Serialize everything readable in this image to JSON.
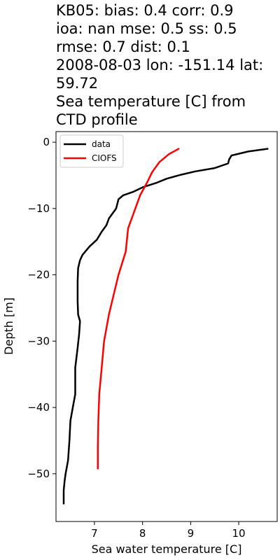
{
  "chart_data": {
    "type": "line",
    "title_lines": [
      "KB05: bias: 0.4  corr: 0.9",
      "ioa: nan  mse: 0.5  ss: 0.5",
      "rmse: 0.7  dist: 0.1",
      "2008-08-03 lon: -151.14 lat:",
      "59.72",
      "Sea temperature [C] from",
      "CTD profile"
    ],
    "xlabel": "Sea water temperature [C]",
    "ylabel": "Depth [m]",
    "xlim": [
      6.2,
      10.8
    ],
    "ylim": [
      -57.2,
      1.6
    ],
    "xticks": [
      7,
      8,
      9,
      10
    ],
    "xtick_labels": [
      "7",
      "8",
      "9",
      "10"
    ],
    "yticks": [
      0,
      -10,
      -20,
      -30,
      -40,
      -50
    ],
    "ytick_labels": [
      "0",
      "−10",
      "−20",
      "−30",
      "−40",
      "−50"
    ],
    "grid": false,
    "legend_position": "top-left",
    "series": [
      {
        "name": "data",
        "color": "#000000",
        "points": [
          [
            10.6,
            -1.0
          ],
          [
            10.2,
            -1.4
          ],
          [
            9.85,
            -2.0
          ],
          [
            9.8,
            -2.6
          ],
          [
            9.78,
            -3.2
          ],
          [
            9.5,
            -3.9
          ],
          [
            9.1,
            -4.4
          ],
          [
            8.8,
            -4.9
          ],
          [
            8.5,
            -5.5
          ],
          [
            8.3,
            -6.1
          ],
          [
            8.0,
            -6.8
          ],
          [
            7.8,
            -7.5
          ],
          [
            7.6,
            -8.0
          ],
          [
            7.5,
            -8.6
          ],
          [
            7.45,
            -10.0
          ],
          [
            7.3,
            -11.5
          ],
          [
            7.25,
            -12.5
          ],
          [
            7.15,
            -13.5
          ],
          [
            7.05,
            -14.7
          ],
          [
            6.9,
            -15.7
          ],
          [
            6.75,
            -17.0
          ],
          [
            6.7,
            -17.8
          ],
          [
            6.66,
            -19.0
          ],
          [
            6.65,
            -21.0
          ],
          [
            6.65,
            -24.0
          ],
          [
            6.66,
            -26.0
          ],
          [
            6.7,
            -27.0
          ],
          [
            6.68,
            -29.0
          ],
          [
            6.65,
            -31.0
          ],
          [
            6.6,
            -34.0
          ],
          [
            6.6,
            -38.0
          ],
          [
            6.55,
            -40.0
          ],
          [
            6.5,
            -42.0
          ],
          [
            6.48,
            -45.0
          ],
          [
            6.45,
            -48.0
          ],
          [
            6.4,
            -50.0
          ],
          [
            6.38,
            -51.0
          ],
          [
            6.36,
            -52.5
          ],
          [
            6.36,
            -54.5
          ]
        ]
      },
      {
        "name": "CIOFS",
        "color": "#ff0000",
        "points": [
          [
            8.75,
            -1.0
          ],
          [
            8.55,
            -1.8
          ],
          [
            8.35,
            -3.0
          ],
          [
            8.2,
            -4.5
          ],
          [
            8.1,
            -6.0
          ],
          [
            7.95,
            -8.0
          ],
          [
            7.85,
            -10.0
          ],
          [
            7.7,
            -13.0
          ],
          [
            7.65,
            -16.5
          ],
          [
            7.5,
            -20.0
          ],
          [
            7.4,
            -23.0
          ],
          [
            7.3,
            -26.0
          ],
          [
            7.2,
            -30.0
          ],
          [
            7.15,
            -34.0
          ],
          [
            7.1,
            -38.0
          ],
          [
            7.08,
            -42.0
          ],
          [
            7.07,
            -46.0
          ],
          [
            7.07,
            -49.2
          ]
        ]
      }
    ]
  }
}
